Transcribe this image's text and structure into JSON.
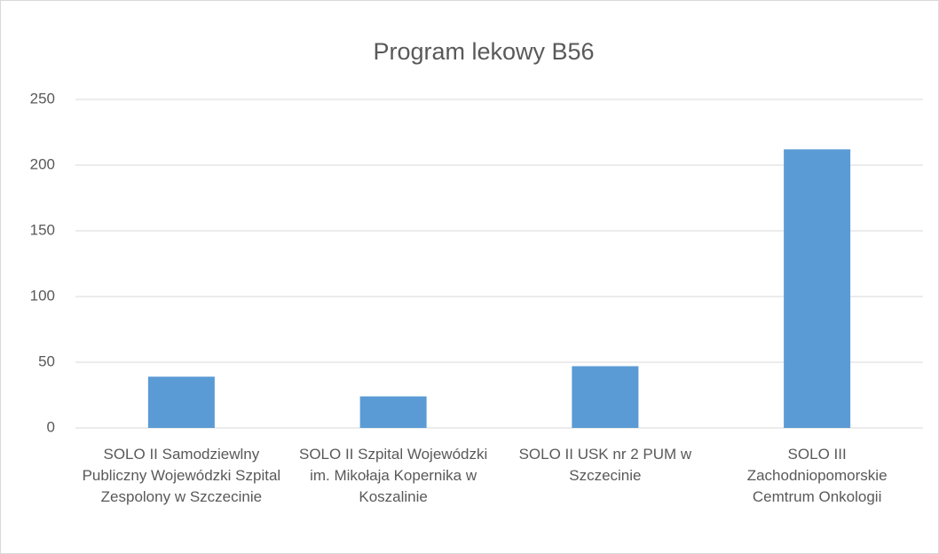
{
  "chart_data": {
    "type": "bar",
    "title": "Program lekowy B56",
    "categories": [
      "SOLO II Samodziewlny Publiczny Wojewódzki Szpital Zespolony w Szczecinie",
      "SOLO II Szpital Wojewódzki im. Mikołaja Kopernika w Koszalinie",
      "SOLO II USK nr 2 PUM w Szczecinie",
      "SOLO III Zachodniopomorskie Cemtrum Onkologii"
    ],
    "values": [
      39,
      24,
      47,
      212
    ],
    "color": "#5b9bd5",
    "ylim": [
      0,
      250
    ],
    "yticks": [
      0,
      50,
      100,
      150,
      200,
      250
    ],
    "grid": true
  }
}
